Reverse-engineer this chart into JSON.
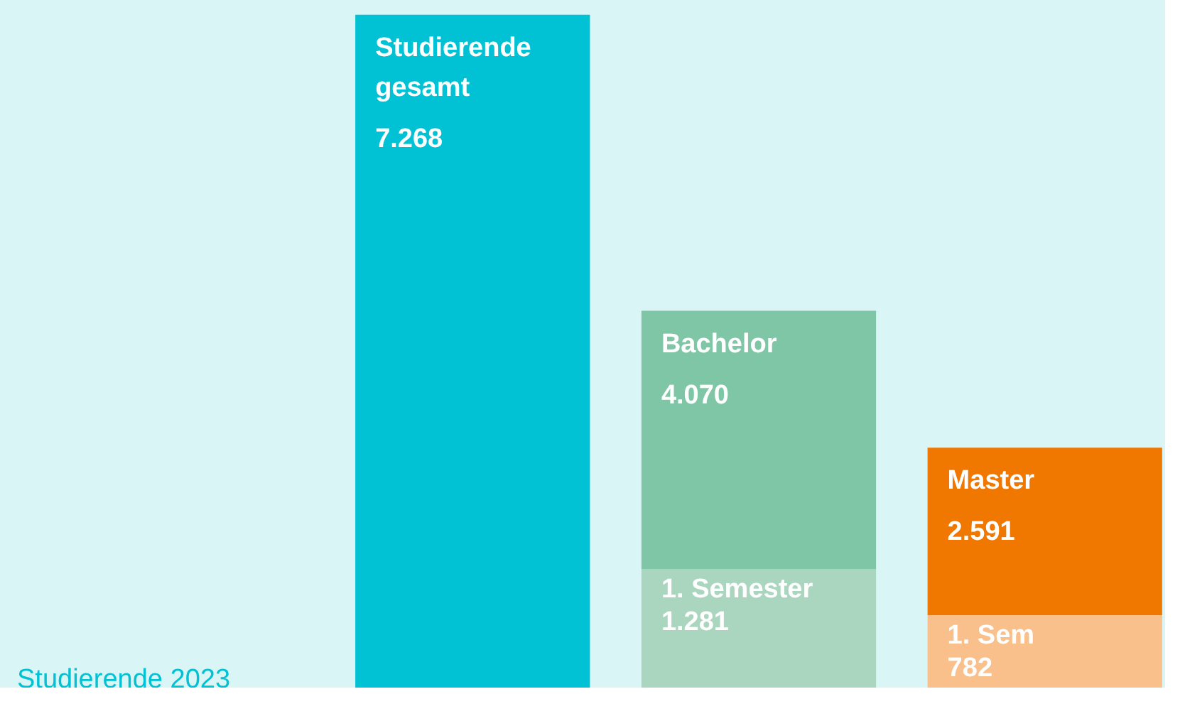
{
  "chart_data": {
    "type": "bar",
    "title": "Studierende 2023",
    "categories": [
      "Studierende gesamt",
      "Bachelor",
      "Master"
    ],
    "stacked": true,
    "series": [
      {
        "colors": [
          "#00c2d4",
          "#aad6bf",
          "#f9c08b"
        ],
        "values": [
          null,
          1281,
          782
        ],
        "value_labels": [
          null,
          "1.281",
          "782"
        ]
      },
      {
        "colors": [
          "#00c2d4",
          "#7fc6a6",
          "#f07800"
        ],
        "values": [
          7268,
          2789,
          1809
        ]
      }
    ],
    "totals": [
      "7.268",
      "4.070",
      "2.591"
    ],
    "annotations": [
      {
        "text": "1. Semester",
        "x": "Bachelor",
        "y": 1281
      },
      {
        "text": "1. Sem",
        "x": "Master",
        "y": 782
      }
    ],
    "relative": false
  }
}
